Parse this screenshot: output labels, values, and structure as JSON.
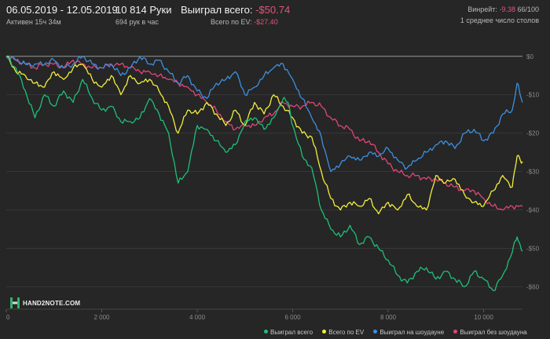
{
  "header": {
    "date_range": "06.05.2019 - 12.05.2019",
    "active": "Активен 15ч 34м",
    "hands": "10 814 Руки",
    "hands_per_hour": "694 рук в час",
    "won_total_label": "Выиграл всего:",
    "won_total_value": "-$50.74",
    "ev_total_label": "Всего по EV:",
    "ev_total_value": "-$27.40",
    "winrate_label": "Винрейт:",
    "winrate_value": "-9.38",
    "winrate_ratio": "66/100",
    "avg_tables": "1 среднее число столов"
  },
  "logo": {
    "text": "HAND2NOTE.COM"
  },
  "colors": {
    "won_total": "#1fbf78",
    "ev": "#f2ef3a",
    "showdown": "#3d8fe0",
    "no_showdown": "#e0457a",
    "grid": "#3c3c3c",
    "zero_line": "#9a9a9a",
    "tick_text": "#8a8a8a",
    "negative_text": "#e0567a"
  },
  "chart_data": {
    "type": "line",
    "x_ticks": [
      {
        "value": 0,
        "label": "0"
      },
      {
        "value": 2000,
        "label": "2 000"
      },
      {
        "value": 4000,
        "label": "4 000"
      },
      {
        "value": 6000,
        "label": "6 000"
      },
      {
        "value": 8000,
        "label": "8 000"
      },
      {
        "value": 10000,
        "label": "10 000"
      }
    ],
    "y_ticks": [
      {
        "value": 0,
        "label": "$0"
      },
      {
        "value": -10,
        "label": "-$10"
      },
      {
        "value": -20,
        "label": "-$20"
      },
      {
        "value": -30,
        "label": "-$30"
      },
      {
        "value": -40,
        "label": "-$40"
      },
      {
        "value": -50,
        "label": "-$50"
      },
      {
        "value": -60,
        "label": "-$60"
      }
    ],
    "xlim": [
      0,
      10814
    ],
    "ylim": [
      -65,
      2
    ],
    "grid": true,
    "legend_position": "bottom-right",
    "series": [
      {
        "key": "won_total",
        "name": "Выиграл всего",
        "color": "#1fbf78",
        "points": [
          [
            0,
            0
          ],
          [
            200,
            -3
          ],
          [
            400,
            -9
          ],
          [
            600,
            -16
          ],
          [
            800,
            -10
          ],
          [
            1000,
            -13
          ],
          [
            1200,
            -9
          ],
          [
            1400,
            -12
          ],
          [
            1600,
            -6
          ],
          [
            1800,
            -11
          ],
          [
            2000,
            -14
          ],
          [
            2200,
            -13
          ],
          [
            2400,
            -17
          ],
          [
            2600,
            -17
          ],
          [
            2800,
            -16
          ],
          [
            3000,
            -11
          ],
          [
            3200,
            -15
          ],
          [
            3400,
            -20
          ],
          [
            3600,
            -33
          ],
          [
            3800,
            -30
          ],
          [
            4000,
            -18
          ],
          [
            4200,
            -19
          ],
          [
            4400,
            -22
          ],
          [
            4600,
            -25
          ],
          [
            4800,
            -23
          ],
          [
            5000,
            -17
          ],
          [
            5200,
            -16
          ],
          [
            5400,
            -19
          ],
          [
            5600,
            -16
          ],
          [
            5800,
            -11
          ],
          [
            5900,
            -12
          ],
          [
            6000,
            -18
          ],
          [
            6200,
            -26
          ],
          [
            6400,
            -29
          ],
          [
            6600,
            -40
          ],
          [
            6800,
            -45
          ],
          [
            7000,
            -47
          ],
          [
            7200,
            -44
          ],
          [
            7400,
            -49
          ],
          [
            7600,
            -47
          ],
          [
            7800,
            -50
          ],
          [
            8000,
            -53
          ],
          [
            8200,
            -57
          ],
          [
            8400,
            -59
          ],
          [
            8600,
            -56
          ],
          [
            8800,
            -55
          ],
          [
            9000,
            -58
          ],
          [
            9200,
            -56
          ],
          [
            9400,
            -58
          ],
          [
            9600,
            -60
          ],
          [
            9800,
            -56
          ],
          [
            10000,
            -58
          ],
          [
            10200,
            -61
          ],
          [
            10400,
            -57
          ],
          [
            10600,
            -51
          ],
          [
            10700,
            -47
          ],
          [
            10814,
            -50.74
          ]
        ]
      },
      {
        "key": "ev",
        "name": "Всего по EV",
        "color": "#f2ef3a",
        "points": [
          [
            0,
            0
          ],
          [
            200,
            -4
          ],
          [
            400,
            -5
          ],
          [
            600,
            -7
          ],
          [
            800,
            -8
          ],
          [
            1000,
            -4
          ],
          [
            1200,
            -6
          ],
          [
            1400,
            -3
          ],
          [
            1600,
            -2
          ],
          [
            1800,
            -6
          ],
          [
            2000,
            -8
          ],
          [
            2200,
            -5
          ],
          [
            2400,
            -10
          ],
          [
            2600,
            -5
          ],
          [
            2800,
            -7
          ],
          [
            3000,
            -6
          ],
          [
            3200,
            -9
          ],
          [
            3400,
            -13
          ],
          [
            3600,
            -20
          ],
          [
            3800,
            -14
          ],
          [
            4000,
            -15
          ],
          [
            4200,
            -12
          ],
          [
            4400,
            -15
          ],
          [
            4600,
            -18
          ],
          [
            4800,
            -14
          ],
          [
            5000,
            -18
          ],
          [
            5200,
            -12
          ],
          [
            5400,
            -15
          ],
          [
            5600,
            -10
          ],
          [
            5800,
            -13
          ],
          [
            6000,
            -16
          ],
          [
            6200,
            -20
          ],
          [
            6400,
            -21
          ],
          [
            6600,
            -30
          ],
          [
            6800,
            -37
          ],
          [
            7000,
            -40
          ],
          [
            7200,
            -38
          ],
          [
            7400,
            -39
          ],
          [
            7600,
            -37
          ],
          [
            7800,
            -41
          ],
          [
            8000,
            -38
          ],
          [
            8200,
            -40
          ],
          [
            8400,
            -36
          ],
          [
            8600,
            -39
          ],
          [
            8800,
            -40
          ],
          [
            9000,
            -31
          ],
          [
            9200,
            -33
          ],
          [
            9400,
            -32
          ],
          [
            9600,
            -36
          ],
          [
            9800,
            -38
          ],
          [
            10000,
            -39
          ],
          [
            10200,
            -35
          ],
          [
            10400,
            -31
          ],
          [
            10600,
            -34
          ],
          [
            10700,
            -26
          ],
          [
            10814,
            -27.4
          ]
        ]
      },
      {
        "key": "showdown",
        "name": "Выиграл на шоудауне",
        "color": "#3d8fe0",
        "points": [
          [
            0,
            0
          ],
          [
            200,
            -1
          ],
          [
            400,
            -2
          ],
          [
            600,
            -2
          ],
          [
            800,
            -2
          ],
          [
            1000,
            -1
          ],
          [
            1200,
            -3
          ],
          [
            1400,
            -2
          ],
          [
            1600,
            0
          ],
          [
            1800,
            -2
          ],
          [
            2000,
            -3
          ],
          [
            2200,
            -2
          ],
          [
            2400,
            -5
          ],
          [
            2600,
            -3
          ],
          [
            2800,
            0
          ],
          [
            3000,
            -2
          ],
          [
            3200,
            -1
          ],
          [
            3400,
            -4
          ],
          [
            3600,
            -7
          ],
          [
            3800,
            -5
          ],
          [
            4000,
            -9
          ],
          [
            4200,
            -11
          ],
          [
            4400,
            -7
          ],
          [
            4600,
            -6
          ],
          [
            4800,
            -4
          ],
          [
            5000,
            -10
          ],
          [
            5200,
            -8
          ],
          [
            5400,
            -5
          ],
          [
            5600,
            -3
          ],
          [
            5800,
            -2
          ],
          [
            6000,
            -6
          ],
          [
            6200,
            -11
          ],
          [
            6400,
            -16
          ],
          [
            6600,
            -21
          ],
          [
            6800,
            -30
          ],
          [
            7000,
            -28
          ],
          [
            7200,
            -26
          ],
          [
            7400,
            -27
          ],
          [
            7600,
            -25
          ],
          [
            7800,
            -26
          ],
          [
            8000,
            -24
          ],
          [
            8200,
            -27
          ],
          [
            8400,
            -29
          ],
          [
            8600,
            -27
          ],
          [
            8800,
            -25
          ],
          [
            9000,
            -23
          ],
          [
            9200,
            -22
          ],
          [
            9400,
            -24
          ],
          [
            9600,
            -20
          ],
          [
            9800,
            -19
          ],
          [
            10000,
            -22
          ],
          [
            10200,
            -20
          ],
          [
            10400,
            -15
          ],
          [
            10600,
            -14
          ],
          [
            10700,
            -7
          ],
          [
            10814,
            -12
          ]
        ]
      },
      {
        "key": "no_showdown",
        "name": "Выиграл без шоудауна",
        "color": "#e0457a",
        "points": [
          [
            0,
            0
          ],
          [
            200,
            -1
          ],
          [
            400,
            -2
          ],
          [
            600,
            -3
          ],
          [
            800,
            -2
          ],
          [
            1000,
            -2
          ],
          [
            1200,
            -3
          ],
          [
            1400,
            -1
          ],
          [
            1600,
            -2
          ],
          [
            1800,
            -3
          ],
          [
            2000,
            -3
          ],
          [
            2200,
            -2
          ],
          [
            2400,
            -2
          ],
          [
            2600,
            -3
          ],
          [
            2800,
            -4
          ],
          [
            3000,
            -4
          ],
          [
            3200,
            -5
          ],
          [
            3400,
            -6
          ],
          [
            3600,
            -7
          ],
          [
            3800,
            -8
          ],
          [
            4000,
            -10
          ],
          [
            4200,
            -12
          ],
          [
            4400,
            -14
          ],
          [
            4600,
            -17
          ],
          [
            4800,
            -19
          ],
          [
            5000,
            -18
          ],
          [
            5200,
            -18
          ],
          [
            5400,
            -16
          ],
          [
            5600,
            -15
          ],
          [
            5800,
            -12
          ],
          [
            6000,
            -13
          ],
          [
            6200,
            -13
          ],
          [
            6400,
            -12
          ],
          [
            6600,
            -13
          ],
          [
            6800,
            -16
          ],
          [
            7000,
            -18
          ],
          [
            7200,
            -19
          ],
          [
            7400,
            -22
          ],
          [
            7600,
            -22
          ],
          [
            7800,
            -25
          ],
          [
            8000,
            -28
          ],
          [
            8200,
            -30
          ],
          [
            8400,
            -31
          ],
          [
            8600,
            -31
          ],
          [
            8800,
            -32
          ],
          [
            9000,
            -32
          ],
          [
            9200,
            -33
          ],
          [
            9400,
            -34
          ],
          [
            9600,
            -35
          ],
          [
            9800,
            -35
          ],
          [
            10000,
            -37
          ],
          [
            10200,
            -39
          ],
          [
            10400,
            -40
          ],
          [
            10600,
            -39
          ],
          [
            10814,
            -39
          ]
        ]
      }
    ]
  }
}
